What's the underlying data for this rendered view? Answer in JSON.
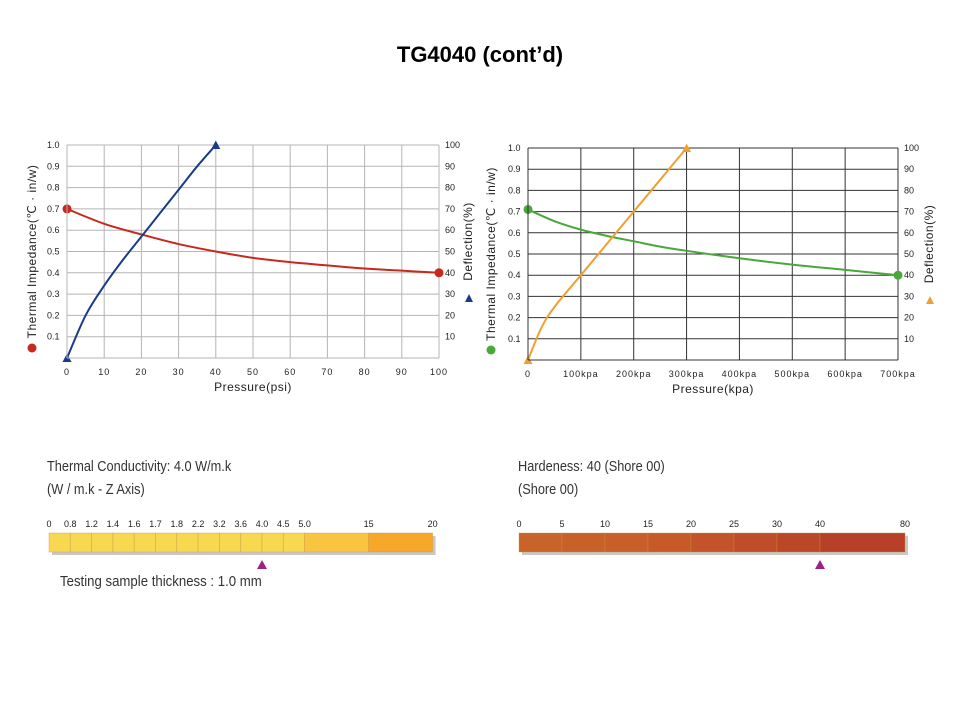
{
  "page": {
    "title": "TG4040 (cont’d)"
  },
  "chart_data": [
    {
      "type": "line",
      "id": "psi",
      "xlabel": "Pressure(psi)",
      "ylabel_left": "Thermal Impedance(℃ · in/w)",
      "ylabel_right": "Deflection(%)",
      "xlim": [
        0,
        100
      ],
      "ylim_left": [
        0,
        1.0
      ],
      "ylim_right": [
        0,
        100
      ],
      "x_ticks": [
        "0",
        "10",
        "20",
        "30",
        "40",
        "50",
        "60",
        "70",
        "80",
        "90",
        "100"
      ],
      "y_ticks_left": [
        "0.1",
        "0.2",
        "0.3",
        "0.4",
        "0.5",
        "0.6",
        "0.7",
        "0.8",
        "0.9",
        "1.0"
      ],
      "y_ticks_right": [
        "10",
        "20",
        "30",
        "40",
        "50",
        "60",
        "70",
        "80",
        "90",
        "100"
      ],
      "grid": true,
      "grid_color": "#b5b5b5",
      "series": [
        {
          "name": "Thermal Impedance",
          "axis": "left",
          "color": "#c8281e",
          "marker": "circle",
          "x": [
            0,
            10,
            20,
            30,
            40,
            50,
            60,
            70,
            80,
            90,
            100
          ],
          "y": [
            0.7,
            0.63,
            0.58,
            0.535,
            0.5,
            0.47,
            0.45,
            0.435,
            0.42,
            0.41,
            0.4
          ]
        },
        {
          "name": "Deflection",
          "axis": "right",
          "color": "#1a3a8a",
          "marker": "triangle",
          "x": [
            0,
            5,
            10,
            15,
            20,
            25,
            30,
            35,
            40
          ],
          "y": [
            0,
            20,
            34,
            46,
            57,
            68,
            79,
            90,
            100
          ]
        }
      ]
    },
    {
      "type": "line",
      "id": "kpa",
      "xlabel": "Pressure(kpa)",
      "ylabel_left": "Thermal Impedance(℃ · in/w)",
      "ylabel_right": "Deflection(%)",
      "xlim": [
        0,
        700
      ],
      "ylim_left": [
        0,
        1.0
      ],
      "ylim_right": [
        0,
        100
      ],
      "x_ticks": [
        "0",
        "100kpa",
        "200kpa",
        "300kpa",
        "400kpa",
        "500kpa",
        "600kpa",
        "700kpa"
      ],
      "y_ticks_left": [
        "0.1",
        "0.2",
        "0.3",
        "0.4",
        "0.5",
        "0.6",
        "0.7",
        "0.8",
        "0.9",
        "1.0"
      ],
      "y_ticks_right": [
        "10",
        "20",
        "30",
        "40",
        "50",
        "60",
        "70",
        "80",
        "90",
        "100"
      ],
      "grid": true,
      "grid_color": "#333333",
      "series": [
        {
          "name": "Thermal Impedance",
          "axis": "left",
          "color": "#48a83a",
          "marker": "circle",
          "x": [
            0,
            50,
            100,
            150,
            200,
            250,
            300,
            400,
            500,
            600,
            700
          ],
          "y": [
            0.71,
            0.655,
            0.615,
            0.585,
            0.56,
            0.535,
            0.515,
            0.48,
            0.45,
            0.425,
            0.4
          ]
        },
        {
          "name": "Deflection",
          "axis": "right",
          "color": "#f0a030",
          "marker": "triangle",
          "x": [
            0,
            25,
            50,
            100,
            150,
            200,
            250,
            300
          ],
          "y": [
            0,
            15,
            25,
            40,
            55,
            70,
            85,
            100
          ]
        }
      ]
    }
  ],
  "conductivity": {
    "heading": "Thermal Conductivity: 4.0 W/m.k",
    "subheading": "(W / m.k - Z Axis)",
    "ticks": [
      "0",
      "0.8",
      "1.2",
      "1.4",
      "1.6",
      "1.7",
      "1.8",
      "2.2",
      "3.2",
      "3.6",
      "4.0",
      "4.5",
      "5.0",
      "15",
      "20"
    ],
    "segment_colors": [
      "#f8d850",
      "#f8d850",
      "#f8d850",
      "#f8d850",
      "#f8d850",
      "#f8d850",
      "#f8d850",
      "#f8d850",
      "#f8d850",
      "#f8d850",
      "#f8d850",
      "#f8d850",
      "#f9c440",
      "#f7a82a"
    ],
    "marker_tick": "4.0",
    "marker_color": "#a0208a",
    "note": "Testing sample thickness :  1.0 mm"
  },
  "hardness": {
    "heading": "Hardeness: 40 (Shore 00)",
    "subheading": "(Shore 00)",
    "ticks": [
      "0",
      "5",
      "10",
      "15",
      "20",
      "25",
      "30",
      "40",
      "80"
    ],
    "segment_colors": [
      "#c8642a",
      "#c8602a",
      "#c85e2a",
      "#c85a2a",
      "#c4522a",
      "#c04c2a",
      "#bc4628",
      "#b84028"
    ],
    "marker_tick": "40",
    "marker_color": "#a0208a"
  }
}
